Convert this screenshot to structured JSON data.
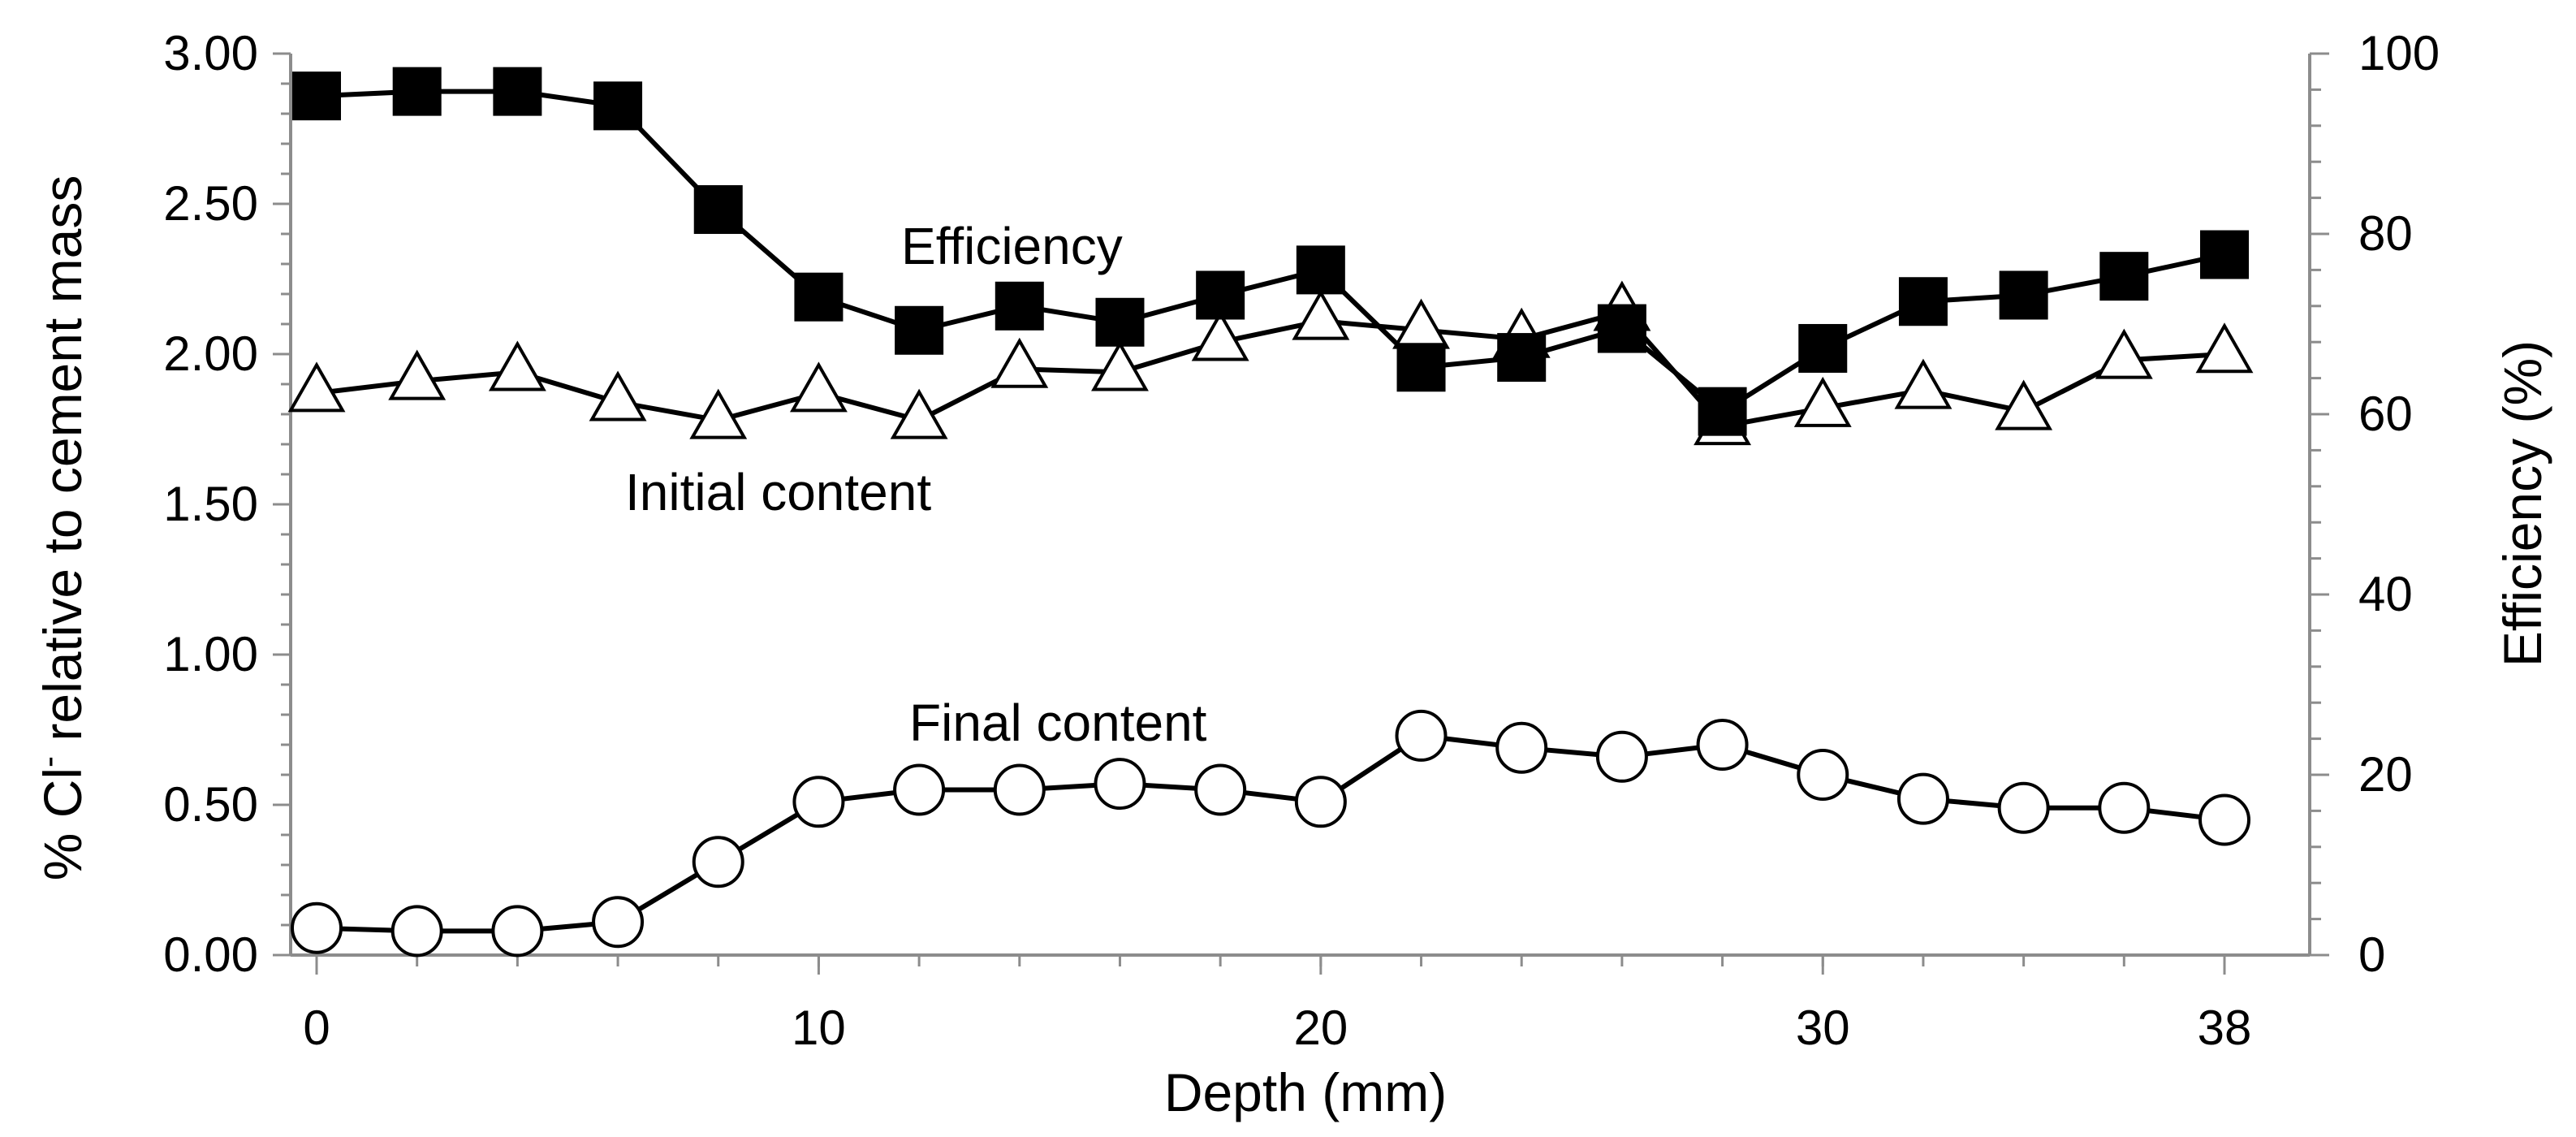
{
  "chart_data": {
    "type": "line",
    "title": "",
    "xlabel": "Depth (mm)",
    "ylabel_left": {
      "prefix": "% Cl",
      "sup": "-",
      "suffix": " relative to cement mass"
    },
    "ylabel_right": "Efficiency (%)",
    "xlim": [
      0,
      38
    ],
    "ylim_left": [
      0,
      3
    ],
    "ylim_right": [
      0,
      100
    ],
    "x_ticks": [
      0,
      10,
      20,
      30,
      38
    ],
    "x_tick_labels": [
      "0",
      "10",
      "20",
      "30",
      "38"
    ],
    "y_left_ticks": [
      0,
      0.5,
      1,
      1.5,
      2,
      2.5,
      3
    ],
    "y_left_tick_labels": [
      "0.00",
      "0.50",
      "1.00",
      "1.50",
      "2.00",
      "2.50",
      "3.00"
    ],
    "y_right_ticks": [
      0,
      20,
      40,
      60,
      80,
      100
    ],
    "y_right_tick_labels": [
      "0",
      "20",
      "40",
      "60",
      "80",
      "100"
    ],
    "x": [
      0,
      2,
      4,
      6,
      8,
      10,
      12,
      14,
      16,
      18,
      20,
      22,
      24,
      26,
      28,
      30,
      32,
      34,
      36,
      38
    ],
    "series": [
      {
        "name": "Initial content",
        "axis": "left",
        "marker": "triangle-open",
        "values": [
          1.87,
          1.91,
          1.94,
          1.84,
          1.78,
          1.87,
          1.78,
          1.95,
          1.94,
          2.04,
          2.11,
          2.08,
          2.05,
          2.14,
          1.76,
          1.82,
          1.88,
          1.81,
          1.98,
          2.0
        ]
      },
      {
        "name": "Efficiency",
        "axis": "right",
        "marker": "square-filled",
        "values": [
          95.3,
          95.8,
          95.8,
          94.2,
          82.7,
          73.0,
          69.3,
          72.0,
          70.2,
          73.2,
          76.0,
          65.2,
          66.3,
          69.5,
          60.3,
          67.3,
          72.5,
          73.2,
          75.3,
          77.7
        ]
      },
      {
        "name": "Final content",
        "axis": "left",
        "marker": "circle-open",
        "values": [
          0.09,
          0.08,
          0.08,
          0.11,
          0.31,
          0.51,
          0.55,
          0.55,
          0.57,
          0.55,
          0.51,
          0.73,
          0.69,
          0.66,
          0.7,
          0.6,
          0.52,
          0.49,
          0.49,
          0.45
        ]
      }
    ],
    "annotations": [
      "Efficiency",
      "Initial content",
      "Final content"
    ]
  }
}
